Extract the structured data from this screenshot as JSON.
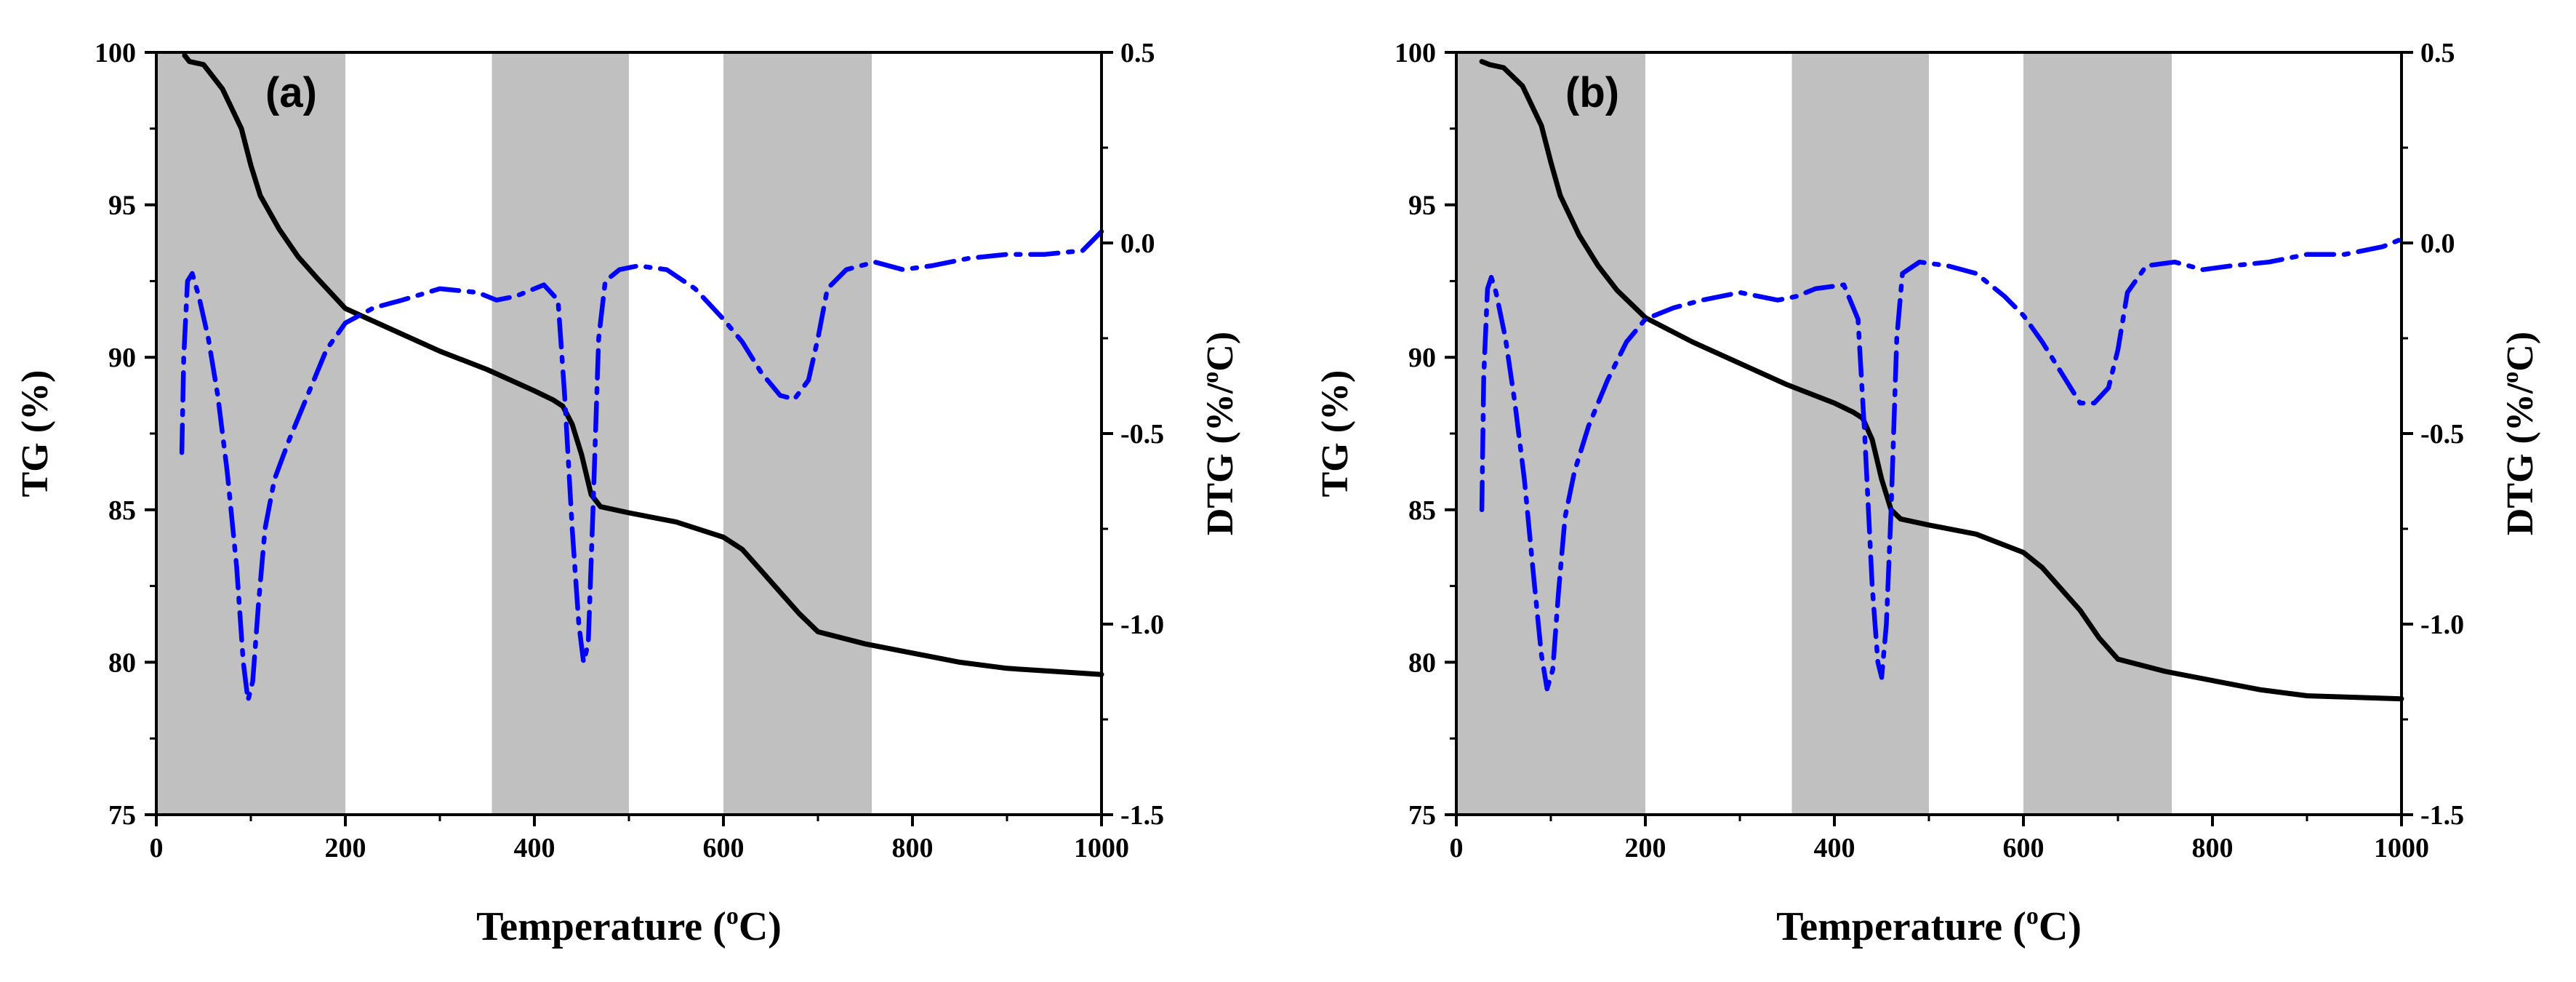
{
  "chart_data": [
    {
      "type": "line",
      "panel_label": "(a)",
      "xlabel": "Temperature (°C)",
      "xlabel_parts": {
        "main": "Temperature (",
        "sup": "o",
        "end": "C)"
      },
      "ylabel_left": "TG (%)",
      "ylabel_right": "DTG (%/°C)",
      "ylabel_right_parts": {
        "main": "DTG (%/",
        "sup": "o",
        "end": "C)"
      },
      "xlim": [
        0,
        1000
      ],
      "ylim_left": [
        75,
        100
      ],
      "ylim_right": [
        -1.5,
        0.5
      ],
      "x_ticks": [
        0,
        200,
        400,
        600,
        800,
        1000
      ],
      "y_left_ticks": [
        75,
        80,
        85,
        90,
        95,
        100
      ],
      "y_right_ticks": [
        "-1.5",
        "-1.0",
        "-0.5",
        "0.0",
        "0.5"
      ],
      "y_right_tick_values": [
        -1.5,
        -1.0,
        -0.5,
        0.0,
        0.5
      ],
      "shaded_ranges": [
        [
          0,
          200
        ],
        [
          355,
          500
        ],
        [
          600,
          757
        ]
      ],
      "shade_color": "#c0c0c0",
      "series": [
        {
          "name": "TG",
          "axis": "left",
          "color": "#000000",
          "style": "solid",
          "points": [
            [
              30,
              99.9
            ],
            [
              35,
              99.7
            ],
            [
              50,
              99.6
            ],
            [
              70,
              98.8
            ],
            [
              90,
              97.5
            ],
            [
              100,
              96.3
            ],
            [
              110,
              95.3
            ],
            [
              130,
              94.2
            ],
            [
              150,
              93.3
            ],
            [
              170,
              92.6
            ],
            [
              200,
              91.6
            ],
            [
              250,
              90.9
            ],
            [
              300,
              90.2
            ],
            [
              350,
              89.6
            ],
            [
              400,
              88.9
            ],
            [
              420,
              88.6
            ],
            [
              430,
              88.4
            ],
            [
              440,
              87.8
            ],
            [
              450,
              86.8
            ],
            [
              460,
              85.5
            ],
            [
              470,
              85.1
            ],
            [
              500,
              84.9
            ],
            [
              550,
              84.6
            ],
            [
              600,
              84.1
            ],
            [
              620,
              83.7
            ],
            [
              640,
              83.0
            ],
            [
              660,
              82.3
            ],
            [
              680,
              81.6
            ],
            [
              700,
              81.0
            ],
            [
              750,
              80.6
            ],
            [
              800,
              80.3
            ],
            [
              850,
              80.0
            ],
            [
              900,
              79.8
            ],
            [
              950,
              79.7
            ],
            [
              1000,
              79.6
            ]
          ]
        },
        {
          "name": "DTG",
          "axis": "right",
          "color": "#0000ff",
          "style": "dashdot",
          "points": [
            [
              27,
              -0.55
            ],
            [
              29,
              -0.3
            ],
            [
              33,
              -0.1
            ],
            [
              38,
              -0.08
            ],
            [
              45,
              -0.14
            ],
            [
              55,
              -0.25
            ],
            [
              65,
              -0.4
            ],
            [
              75,
              -0.6
            ],
            [
              85,
              -0.85
            ],
            [
              92,
              -1.1
            ],
            [
              97,
              -1.2
            ],
            [
              102,
              -1.15
            ],
            [
              108,
              -0.95
            ],
            [
              115,
              -0.75
            ],
            [
              125,
              -0.62
            ],
            [
              140,
              -0.52
            ],
            [
              160,
              -0.4
            ],
            [
              180,
              -0.28
            ],
            [
              200,
              -0.21
            ],
            [
              230,
              -0.17
            ],
            [
              260,
              -0.15
            ],
            [
              300,
              -0.12
            ],
            [
              340,
              -0.13
            ],
            [
              360,
              -0.15
            ],
            [
              380,
              -0.14
            ],
            [
              410,
              -0.11
            ],
            [
              425,
              -0.15
            ],
            [
              432,
              -0.4
            ],
            [
              440,
              -0.75
            ],
            [
              447,
              -1.0
            ],
            [
              452,
              -1.1
            ],
            [
              457,
              -1.05
            ],
            [
              462,
              -0.7
            ],
            [
              468,
              -0.25
            ],
            [
              475,
              -0.1
            ],
            [
              490,
              -0.07
            ],
            [
              510,
              -0.06
            ],
            [
              540,
              -0.07
            ],
            [
              570,
              -0.12
            ],
            [
              600,
              -0.2
            ],
            [
              620,
              -0.26
            ],
            [
              640,
              -0.34
            ],
            [
              660,
              -0.4
            ],
            [
              675,
              -0.41
            ],
            [
              690,
              -0.36
            ],
            [
              700,
              -0.25
            ],
            [
              710,
              -0.12
            ],
            [
              730,
              -0.07
            ],
            [
              760,
              -0.05
            ],
            [
              790,
              -0.07
            ],
            [
              820,
              -0.06
            ],
            [
              860,
              -0.04
            ],
            [
              900,
              -0.03
            ],
            [
              940,
              -0.03
            ],
            [
              980,
              -0.02
            ],
            [
              1000,
              0.03
            ]
          ]
        }
      ]
    },
    {
      "type": "line",
      "panel_label": "(b)",
      "xlabel": "Temperature (°C)",
      "xlabel_parts": {
        "main": "Temperature (",
        "sup": "o",
        "end": "C)"
      },
      "ylabel_left": "TG (%)",
      "ylabel_right": "DTG (%/°C)",
      "ylabel_right_parts": {
        "main": "DTG (%/",
        "sup": "o",
        "end": "C)"
      },
      "xlim": [
        0,
        1000
      ],
      "ylim_left": [
        75,
        100
      ],
      "ylim_right": [
        -1.5,
        0.5
      ],
      "x_ticks": [
        0,
        200,
        400,
        600,
        800,
        1000
      ],
      "y_left_ticks": [
        75,
        80,
        85,
        90,
        95,
        100
      ],
      "y_right_ticks": [
        "-1.5",
        "-1.0",
        "-0.5",
        "0.0",
        "0.5"
      ],
      "y_right_tick_values": [
        -1.5,
        -1.0,
        -0.5,
        0.0,
        0.5
      ],
      "shaded_ranges": [
        [
          0,
          200
        ],
        [
          355,
          500
        ],
        [
          600,
          757
        ]
      ],
      "shade_color": "#c0c0c0",
      "series": [
        {
          "name": "TG",
          "axis": "left",
          "color": "#000000",
          "style": "solid",
          "points": [
            [
              27,
              99.7
            ],
            [
              35,
              99.6
            ],
            [
              50,
              99.5
            ],
            [
              70,
              98.9
            ],
            [
              90,
              97.6
            ],
            [
              100,
              96.4
            ],
            [
              110,
              95.3
            ],
            [
              130,
              94.0
            ],
            [
              150,
              93.0
            ],
            [
              170,
              92.2
            ],
            [
              200,
              91.3
            ],
            [
              250,
              90.5
            ],
            [
              300,
              89.8
            ],
            [
              350,
              89.1
            ],
            [
              400,
              88.5
            ],
            [
              420,
              88.2
            ],
            [
              430,
              88.0
            ],
            [
              440,
              87.3
            ],
            [
              450,
              86.0
            ],
            [
              460,
              85.0
            ],
            [
              470,
              84.7
            ],
            [
              500,
              84.5
            ],
            [
              550,
              84.2
            ],
            [
              600,
              83.6
            ],
            [
              620,
              83.1
            ],
            [
              640,
              82.4
            ],
            [
              660,
              81.7
            ],
            [
              680,
              80.8
            ],
            [
              700,
              80.1
            ],
            [
              750,
              79.7
            ],
            [
              800,
              79.4
            ],
            [
              850,
              79.1
            ],
            [
              900,
              78.9
            ],
            [
              950,
              78.85
            ],
            [
              1000,
              78.8
            ]
          ]
        },
        {
          "name": "DTG",
          "axis": "right",
          "color": "#0000ff",
          "style": "dashdot",
          "points": [
            [
              27,
              -0.7
            ],
            [
              29,
              -0.35
            ],
            [
              33,
              -0.12
            ],
            [
              37,
              -0.09
            ],
            [
              42,
              -0.13
            ],
            [
              52,
              -0.25
            ],
            [
              62,
              -0.42
            ],
            [
              72,
              -0.62
            ],
            [
              82,
              -0.88
            ],
            [
              90,
              -1.08
            ],
            [
              96,
              -1.17
            ],
            [
              102,
              -1.12
            ],
            [
              108,
              -0.92
            ],
            [
              115,
              -0.72
            ],
            [
              125,
              -0.6
            ],
            [
              140,
              -0.48
            ],
            [
              160,
              -0.36
            ],
            [
              180,
              -0.26
            ],
            [
              200,
              -0.2
            ],
            [
              230,
              -0.17
            ],
            [
              260,
              -0.15
            ],
            [
              300,
              -0.13
            ],
            [
              340,
              -0.15
            ],
            [
              360,
              -0.14
            ],
            [
              380,
              -0.12
            ],
            [
              410,
              -0.11
            ],
            [
              425,
              -0.2
            ],
            [
              432,
              -0.5
            ],
            [
              440,
              -0.9
            ],
            [
              446,
              -1.1
            ],
            [
              450,
              -1.14
            ],
            [
              455,
              -1.0
            ],
            [
              460,
              -0.7
            ],
            [
              466,
              -0.25
            ],
            [
              472,
              -0.08
            ],
            [
              490,
              -0.05
            ],
            [
              520,
              -0.06
            ],
            [
              550,
              -0.08
            ],
            [
              580,
              -0.14
            ],
            [
              600,
              -0.19
            ],
            [
              620,
              -0.26
            ],
            [
              640,
              -0.34
            ],
            [
              660,
              -0.42
            ],
            [
              675,
              -0.42
            ],
            [
              690,
              -0.38
            ],
            [
              700,
              -0.28
            ],
            [
              710,
              -0.13
            ],
            [
              730,
              -0.06
            ],
            [
              760,
              -0.05
            ],
            [
              790,
              -0.07
            ],
            [
              820,
              -0.06
            ],
            [
              860,
              -0.05
            ],
            [
              900,
              -0.03
            ],
            [
              940,
              -0.03
            ],
            [
              980,
              -0.01
            ],
            [
              1000,
              0.01
            ]
          ]
        }
      ]
    }
  ]
}
